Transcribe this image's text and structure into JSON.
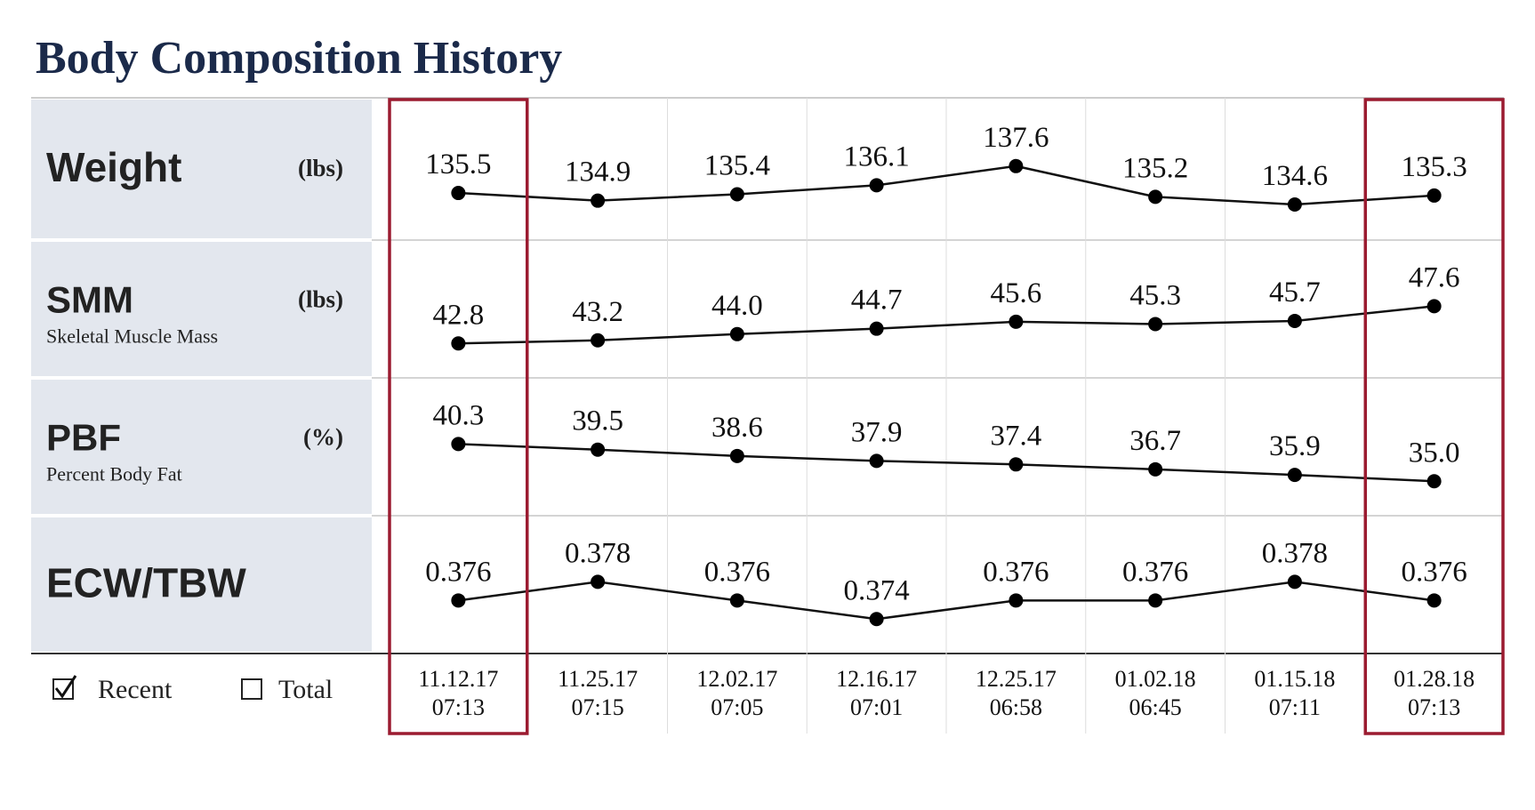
{
  "title": "Body Composition History",
  "rows": [
    {
      "label": "Weight",
      "unit": "(lbs)",
      "values": [
        135.5,
        134.9,
        135.4,
        136.1,
        137.6,
        135.2,
        134.6,
        135.3
      ]
    },
    {
      "label": "SMM",
      "unit": "(lbs)",
      "sublabel": "Skeletal Muscle Mass",
      "values": [
        42.8,
        43.2,
        44.0,
        44.7,
        45.6,
        45.3,
        45.7,
        47.6
      ],
      "value_labels": [
        "42.8",
        "43.2",
        "44.0",
        "44.7",
        "45.6",
        "45.3",
        "45.7",
        "47.6"
      ]
    },
    {
      "label": "PBF",
      "unit": "(%)",
      "sublabel": "Percent Body Fat",
      "values": [
        40.3,
        39.5,
        38.6,
        37.9,
        37.4,
        36.7,
        35.9,
        35.0
      ],
      "value_labels": [
        "40.3",
        "39.5",
        "38.6",
        "37.9",
        "37.4",
        "36.7",
        "35.9",
        "35.0"
      ]
    },
    {
      "label": "ECW/TBW",
      "values": [
        0.376,
        0.378,
        0.376,
        0.374,
        0.376,
        0.376,
        0.378,
        0.376
      ]
    }
  ],
  "dates": [
    {
      "date": "11.12.17",
      "time": "07:13"
    },
    {
      "date": "11.25.17",
      "time": "07:15"
    },
    {
      "date": "12.02.17",
      "time": "07:05"
    },
    {
      "date": "12.16.17",
      "time": "07:01"
    },
    {
      "date": "12.25.17",
      "time": "06:58"
    },
    {
      "date": "01.02.18",
      "time": "06:45"
    },
    {
      "date": "01.15.18",
      "time": "07:11"
    },
    {
      "date": "01.28.18",
      "time": "07:13"
    }
  ],
  "controls": {
    "recent": "Recent",
    "total": "Total"
  }
}
